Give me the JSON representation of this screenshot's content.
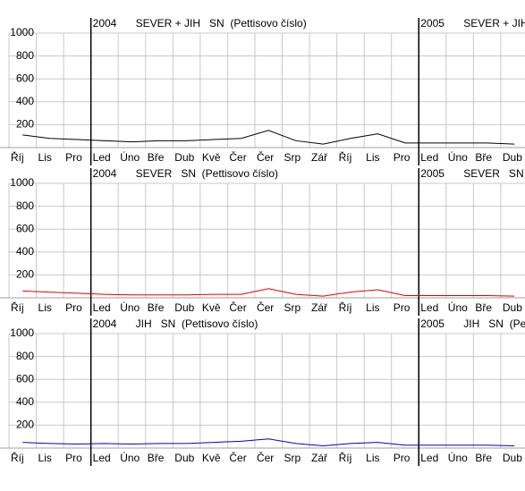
{
  "chart_data": [
    {
      "type": "line",
      "title": "SEVER + JIH   SN  (Pettisovo číslo)",
      "annotations": [
        "2004",
        "2005"
      ],
      "categories": [
        "Říj",
        "Lis",
        "Pro",
        "Led",
        "Úno",
        "Bře",
        "Dub",
        "Kvě",
        "Čer",
        "Čer",
        "Srp",
        "Zář",
        "Říj",
        "Lis",
        "Pro",
        "Led",
        "Úno",
        "Bře",
        "Dub"
      ],
      "values": [
        110,
        80,
        70,
        60,
        50,
        60,
        60,
        70,
        80,
        150,
        60,
        30,
        80,
        120,
        40,
        40,
        40,
        40,
        30
      ],
      "color": "#000000",
      "ylim": [
        0,
        1000
      ],
      "yticks": [
        200,
        400,
        600,
        800,
        1000
      ],
      "grid": true
    },
    {
      "type": "line",
      "title": "SEVER   SN  (Pettisovo číslo)",
      "annotations": [
        "2004",
        "2005"
      ],
      "categories": [
        "Říj",
        "Lis",
        "Pro",
        "Led",
        "Úno",
        "Bře",
        "Dub",
        "Kvě",
        "Čer",
        "Čer",
        "Srp",
        "Zář",
        "Říj",
        "Lis",
        "Pro",
        "Led",
        "Úno",
        "Bře",
        "Dub"
      ],
      "values": [
        60,
        50,
        40,
        30,
        25,
        25,
        25,
        30,
        30,
        80,
        30,
        15,
        50,
        70,
        20,
        20,
        20,
        20,
        15
      ],
      "color": "#e00000",
      "ylim": [
        0,
        1000
      ],
      "yticks": [
        200,
        400,
        600,
        800,
        1000
      ],
      "grid": true
    },
    {
      "type": "line",
      "title": "JIH   SN  (Pettisovo číslo)",
      "annotations": [
        "2004",
        "2005"
      ],
      "categories": [
        "Říj",
        "Lis",
        "Pro",
        "Led",
        "Úno",
        "Bře",
        "Dub",
        "Kvě",
        "Čer",
        "Čer",
        "Srp",
        "Zář",
        "Říj",
        "Lis",
        "Pro",
        "Led",
        "Úno",
        "Bře",
        "Dub"
      ],
      "values": [
        50,
        40,
        35,
        40,
        35,
        40,
        40,
        50,
        60,
        80,
        40,
        20,
        40,
        50,
        25,
        25,
        25,
        25,
        20
      ],
      "color": "#0000cc",
      "ylim": [
        0,
        1000
      ],
      "yticks": [
        200,
        400,
        600,
        800,
        1000
      ],
      "grid": true
    }
  ]
}
